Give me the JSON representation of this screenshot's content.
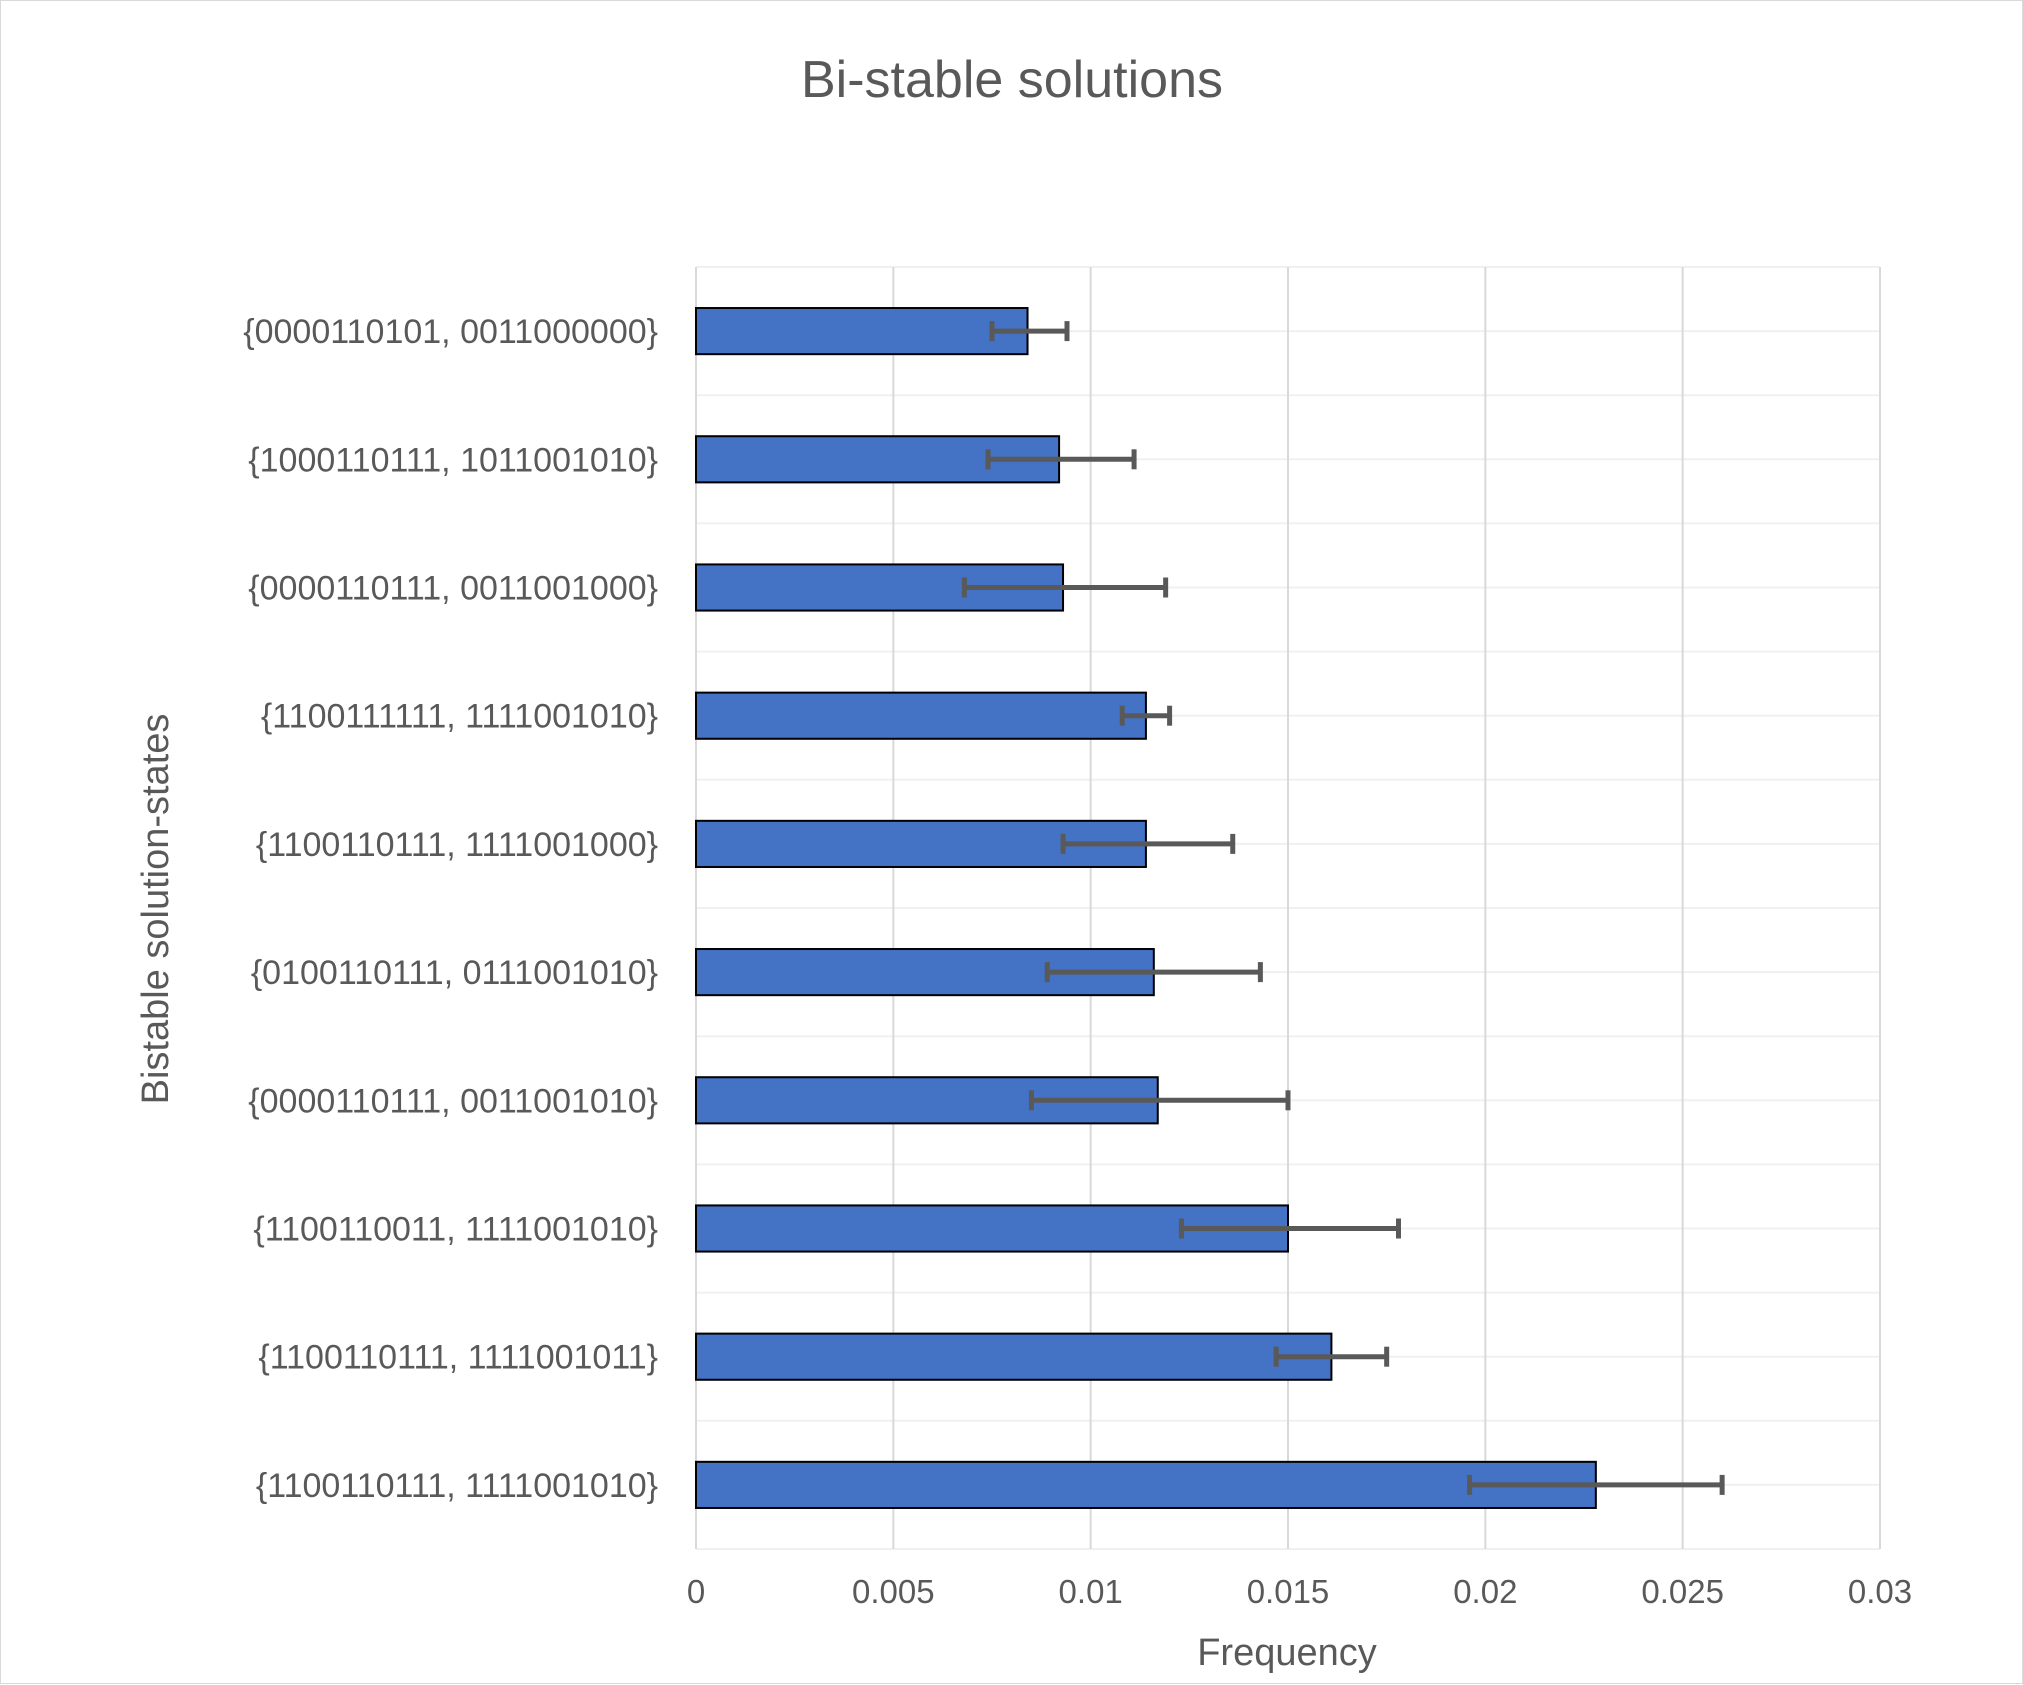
{
  "chart_data": {
    "type": "bar",
    "orientation": "horizontal",
    "title": "Bi-stable solutions",
    "xlabel": "Frequency",
    "ylabel": "Bistable solution-states",
    "xlim": [
      0,
      0.03
    ],
    "xticks": [
      0,
      0.005,
      0.01,
      0.015,
      0.02,
      0.025,
      0.03
    ],
    "xtick_labels": [
      "0",
      "0.005",
      "0.01",
      "0.015",
      "0.02",
      "0.025",
      "0.03"
    ],
    "grid": true,
    "legend": "none",
    "bar_color": "#4472C4",
    "bar_edge_color": "#000000",
    "error_bar_color": "#595959",
    "categories": [
      "{0000110101, 0011000000}",
      "{1000110111, 1011001010}",
      "{0000110111, 0011001000}",
      "{1100111111, 1111001010}",
      "{1100110111, 1111001000}",
      "{0100110111, 0111001010}",
      "{0000110111, 0011001010}",
      "{1100110011, 1111001010}",
      "{1100110111, 1111001011}",
      "{1100110111, 1111001010}"
    ],
    "values": [
      0.0084,
      0.0092,
      0.0093,
      0.0114,
      0.0114,
      0.0116,
      0.0117,
      0.015,
      0.0161,
      0.0228
    ],
    "error_low": [
      0.0075,
      0.0074,
      0.0068,
      0.0108,
      0.0093,
      0.0089,
      0.0085,
      0.0123,
      0.0147,
      0.0196
    ],
    "error_high": [
      0.0094,
      0.0111,
      0.0119,
      0.012,
      0.0136,
      0.0143,
      0.015,
      0.0178,
      0.0175,
      0.026
    ]
  }
}
